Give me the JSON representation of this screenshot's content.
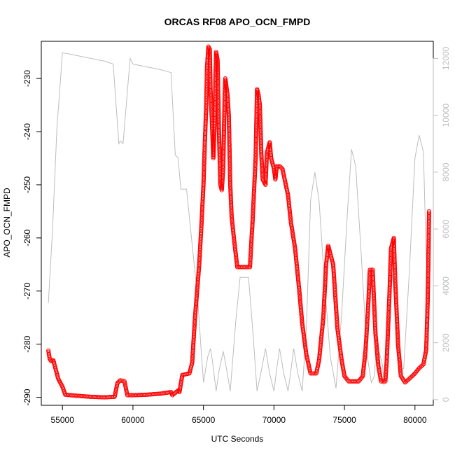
{
  "chart_data": {
    "type": "line",
    "title": "ORCAS RF08 APO_OCN_FMPD",
    "xlabel": "UTC Seconds",
    "ylabel": "APO_OCN_FMPD",
    "xlim": [
      53500,
      81300
    ],
    "ylim": [
      -291.5,
      -223
    ],
    "y2lim": [
      -200,
      12600
    ],
    "x_ticks": [
      55000,
      60000,
      65000,
      70000,
      75000,
      80000
    ],
    "x_tick_labels": [
      "55000",
      "60000",
      "65000",
      "70000",
      "75000",
      "80000"
    ],
    "y_ticks": [
      -290,
      -280,
      -270,
      -260,
      -250,
      -240,
      -230
    ],
    "y_tick_labels": [
      "-290",
      "-280",
      "-270",
      "-260",
      "-250",
      "-240",
      "-230"
    ],
    "y2_ticks": [
      0,
      2000,
      4000,
      6000,
      8000,
      10000,
      12000
    ],
    "y2_tick_labels": [
      "0",
      "2000",
      "4000",
      "6000",
      "8000",
      "10000",
      "12000"
    ],
    "series": [
      {
        "color": "#ff0000",
        "marker": "open-circle",
        "axis": "left",
        "points": [
          [
            54000,
            -281.2
          ],
          [
            54100,
            -282.8
          ],
          [
            54200,
            -283.2
          ],
          [
            54350,
            -283.0
          ],
          [
            54500,
            -284.5
          ],
          [
            54700,
            -286.5
          ],
          [
            55000,
            -288.0
          ],
          [
            55200,
            -289.5
          ],
          [
            56000,
            -289.7
          ],
          [
            57000,
            -289.9
          ],
          [
            58000,
            -290.0
          ],
          [
            58700,
            -289.9
          ],
          [
            58900,
            -287.3
          ],
          [
            59100,
            -286.8
          ],
          [
            59400,
            -287.0
          ],
          [
            59600,
            -289.6
          ],
          [
            60000,
            -289.6
          ],
          [
            61000,
            -289.5
          ],
          [
            62000,
            -289.3
          ],
          [
            62700,
            -289.0
          ],
          [
            62800,
            -289.6
          ],
          [
            63200,
            -288.7
          ],
          [
            63300,
            -289.0
          ],
          [
            63500,
            -285.8
          ],
          [
            64000,
            -285.5
          ],
          [
            64200,
            -283.5
          ],
          [
            64400,
            -275.0
          ],
          [
            64700,
            -265.0
          ],
          [
            64850,
            -258.0
          ],
          [
            65000,
            -250.0
          ],
          [
            65100,
            -242.0
          ],
          [
            65200,
            -235.0
          ],
          [
            65250,
            -228.0
          ],
          [
            65350,
            -224.0
          ],
          [
            65450,
            -224.5
          ],
          [
            65500,
            -232.0
          ],
          [
            65600,
            -238.0
          ],
          [
            65700,
            -245.0
          ],
          [
            65800,
            -238.0
          ],
          [
            65850,
            -230.0
          ],
          [
            65900,
            -225.0
          ],
          [
            66000,
            -226.5
          ],
          [
            66100,
            -240.0
          ],
          [
            66200,
            -250.0
          ],
          [
            66300,
            -251.0
          ],
          [
            66400,
            -247.0
          ],
          [
            66500,
            -234.0
          ],
          [
            66550,
            -230.0
          ],
          [
            66700,
            -233.0
          ],
          [
            66800,
            -237.0
          ],
          [
            66900,
            -250.0
          ],
          [
            67000,
            -256.0
          ],
          [
            67200,
            -261.0
          ],
          [
            67400,
            -265.5
          ],
          [
            68000,
            -265.5
          ],
          [
            68300,
            -265.5
          ],
          [
            68500,
            -256.0
          ],
          [
            68700,
            -245.0
          ],
          [
            68800,
            -232.0
          ],
          [
            68900,
            -233.0
          ],
          [
            69000,
            -235.0
          ],
          [
            69100,
            -244.0
          ],
          [
            69200,
            -249.0
          ],
          [
            69400,
            -250.0
          ],
          [
            69500,
            -244.0
          ],
          [
            69700,
            -242.0
          ],
          [
            69800,
            -245.0
          ],
          [
            70000,
            -247.0
          ],
          [
            70100,
            -249.0
          ],
          [
            70200,
            -246.5
          ],
          [
            70400,
            -246.5
          ],
          [
            70600,
            -247.0
          ],
          [
            70800,
            -249.5
          ],
          [
            71000,
            -252.0
          ],
          [
            71200,
            -257.0
          ],
          [
            71500,
            -262.0
          ],
          [
            71800,
            -270.0
          ],
          [
            72000,
            -276.0
          ],
          [
            72300,
            -282.0
          ],
          [
            72600,
            -285.5
          ],
          [
            73000,
            -285.5
          ],
          [
            73200,
            -283.0
          ],
          [
            73500,
            -275.0
          ],
          [
            73700,
            -265.0
          ],
          [
            73850,
            -261.5
          ],
          [
            74000,
            -263.0
          ],
          [
            74200,
            -265.0
          ],
          [
            74500,
            -277.0
          ],
          [
            74800,
            -283.0
          ],
          [
            75000,
            -286.0
          ],
          [
            75300,
            -287.0
          ],
          [
            76000,
            -287.0
          ],
          [
            76300,
            -286.0
          ],
          [
            76500,
            -281.0
          ],
          [
            76700,
            -272.0
          ],
          [
            76800,
            -266.0
          ],
          [
            77000,
            -266.0
          ],
          [
            77200,
            -278.0
          ],
          [
            77400,
            -284.0
          ],
          [
            77600,
            -287.0
          ],
          [
            77900,
            -287.0
          ],
          [
            78000,
            -283.0
          ],
          [
            78200,
            -270.0
          ],
          [
            78300,
            -262.0
          ],
          [
            78500,
            -260.0
          ],
          [
            78600,
            -268.0
          ],
          [
            78800,
            -280.0
          ],
          [
            79000,
            -286.0
          ],
          [
            79300,
            -287.2
          ],
          [
            79600,
            -286.5
          ],
          [
            80000,
            -285.5
          ],
          [
            80300,
            -284.5
          ],
          [
            80600,
            -283.8
          ],
          [
            80800,
            -281.0
          ],
          [
            80900,
            -272.0
          ],
          [
            80950,
            -265.0
          ],
          [
            81000,
            -255.0
          ]
        ]
      },
      {
        "color": "#bdbdbd",
        "marker": "none",
        "axis": "right",
        "points": [
          [
            54000,
            3400
          ],
          [
            54300,
            6000
          ],
          [
            54600,
            9500
          ],
          [
            55000,
            12200
          ],
          [
            56000,
            12100
          ],
          [
            57000,
            12000
          ],
          [
            58000,
            11900
          ],
          [
            58600,
            11800
          ],
          [
            59000,
            9000
          ],
          [
            59100,
            9100
          ],
          [
            59300,
            9000
          ],
          [
            59800,
            12000
          ],
          [
            60000,
            11800
          ],
          [
            61000,
            11700
          ],
          [
            62000,
            11600
          ],
          [
            62700,
            11500
          ],
          [
            63000,
            8600
          ],
          [
            63200,
            8500
          ],
          [
            63400,
            7400
          ],
          [
            63800,
            7400
          ],
          [
            64600,
            3500
          ],
          [
            64800,
            2000
          ],
          [
            65000,
            600
          ],
          [
            65300,
            1500
          ],
          [
            65500,
            1800
          ],
          [
            65600,
            1500
          ],
          [
            65900,
            300
          ],
          [
            66100,
            1000
          ],
          [
            66400,
            1700
          ],
          [
            66700,
            900
          ],
          [
            66900,
            300
          ],
          [
            67300,
            2800
          ],
          [
            67600,
            4300
          ],
          [
            68200,
            4300
          ],
          [
            68500,
            2400
          ],
          [
            68800,
            300
          ],
          [
            69100,
            1000
          ],
          [
            69400,
            1800
          ],
          [
            69700,
            900
          ],
          [
            70000,
            300
          ],
          [
            70200,
            1100
          ],
          [
            70400,
            1800
          ],
          [
            70700,
            900
          ],
          [
            71000,
            300
          ],
          [
            71200,
            1000
          ],
          [
            71400,
            1800
          ],
          [
            71700,
            900
          ],
          [
            72000,
            300
          ],
          [
            72300,
            2500
          ],
          [
            72600,
            7000
          ],
          [
            72900,
            8000
          ],
          [
            73200,
            7000
          ],
          [
            73600,
            4000
          ],
          [
            74000,
            1500
          ],
          [
            74400,
            400
          ],
          [
            74800,
            3000
          ],
          [
            75200,
            6500
          ],
          [
            75500,
            8800
          ],
          [
            75800,
            8200
          ],
          [
            76200,
            5000
          ],
          [
            76600,
            1600
          ],
          [
            76900,
            600
          ],
          [
            77100,
            800
          ],
          [
            77300,
            2000
          ],
          [
            77700,
            1200
          ],
          [
            77800,
            500
          ],
          [
            78100,
            2500
          ],
          [
            78400,
            4400
          ],
          [
            78700,
            2700
          ],
          [
            78900,
            1000
          ],
          [
            79200,
            1100
          ],
          [
            79600,
            4500
          ],
          [
            80000,
            8500
          ],
          [
            80300,
            9300
          ],
          [
            80600,
            8700
          ],
          [
            80800,
            5000
          ],
          [
            81000,
            2800
          ]
        ]
      }
    ]
  }
}
